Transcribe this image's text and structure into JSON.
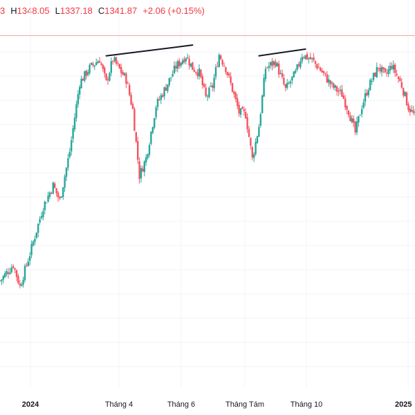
{
  "ohlc_header": {
    "open_fragment": "3",
    "high_key": "H",
    "high_value": "1348.05",
    "low_key": "L",
    "low_value": "1337.18",
    "close_key": "C",
    "close_value": "1341.87",
    "change": "+2.06 (+0.15%)"
  },
  "colors": {
    "up": "#26a69a",
    "down": "#f7525f",
    "grid": "#f0f3fa",
    "reference_line": "#f7a1a8",
    "trend_line": "#131722"
  },
  "chart_data": {
    "type": "candlestick",
    "x_tick_labels": [
      {
        "label": "2024",
        "bold": true
      },
      {
        "label": "Tháng 4",
        "bold": false
      },
      {
        "label": "Tháng 6",
        "bold": false
      },
      {
        "label": "Tháng Tám",
        "bold": false
      },
      {
        "label": "Tháng 10",
        "bold": false
      },
      {
        "label": "2025",
        "bold": true
      }
    ],
    "x_range": [
      0,
      125
    ],
    "y_range": [
      1000,
      1540
    ],
    "price_path": [
      [
        0,
        1158
      ],
      [
        4,
        1182
      ],
      [
        6,
        1150
      ],
      [
        9,
        1198
      ],
      [
        13,
        1268
      ],
      [
        16,
        1300
      ],
      [
        18,
        1277
      ],
      [
        21,
        1350
      ],
      [
        24,
        1452
      ],
      [
        27,
        1474
      ],
      [
        30,
        1487
      ],
      [
        32,
        1452
      ],
      [
        34,
        1487
      ],
      [
        38,
        1457
      ],
      [
        40,
        1412
      ],
      [
        42,
        1314
      ],
      [
        44,
        1340
      ],
      [
        47,
        1418
      ],
      [
        50,
        1446
      ],
      [
        53,
        1476
      ],
      [
        56,
        1492
      ],
      [
        58,
        1474
      ],
      [
        60,
        1467
      ],
      [
        62,
        1430
      ],
      [
        64,
        1447
      ],
      [
        66,
        1494
      ],
      [
        68,
        1474
      ],
      [
        70,
        1442
      ],
      [
        72,
        1408
      ],
      [
        74,
        1405
      ],
      [
        76,
        1339
      ],
      [
        78,
        1388
      ],
      [
        80,
        1474
      ],
      [
        83,
        1483
      ],
      [
        86,
        1442
      ],
      [
        89,
        1466
      ],
      [
        91,
        1494
      ],
      [
        94,
        1486
      ],
      [
        97,
        1468
      ],
      [
        100,
        1447
      ],
      [
        103,
        1435
      ],
      [
        105,
        1410
      ],
      [
        107,
        1378
      ],
      [
        109,
        1418
      ],
      [
        111,
        1446
      ],
      [
        114,
        1476
      ],
      [
        116,
        1462
      ],
      [
        118,
        1478
      ],
      [
        121,
        1448
      ],
      [
        123,
        1416
      ],
      [
        125,
        1402
      ]
    ],
    "reference_level": 1522,
    "trend_lines": [
      {
        "from": [
          32,
          1492
        ],
        "to": [
          58,
          1508
        ]
      },
      {
        "from": [
          78,
          1492
        ],
        "to": [
          92,
          1502
        ]
      }
    ]
  }
}
